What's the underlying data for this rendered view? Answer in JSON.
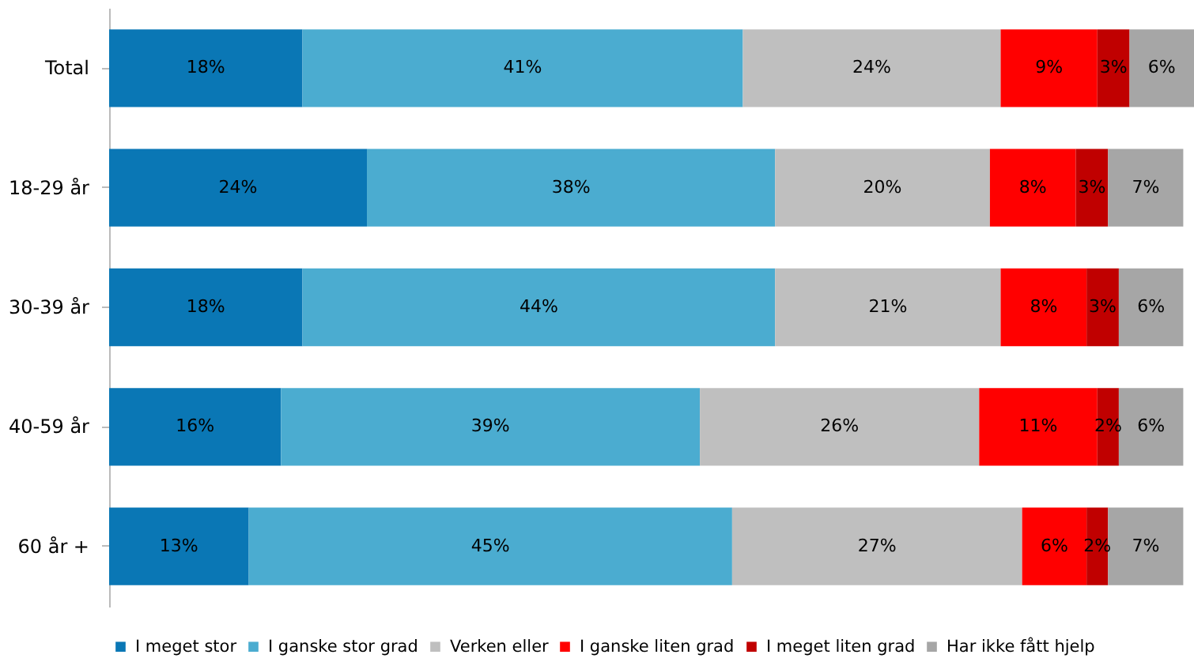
{
  "chart_data": {
    "type": "bar",
    "orientation": "horizontal",
    "stacked": true,
    "legend": "bottom",
    "categories": [
      "Total",
      "18-29 år",
      "30-39 år",
      "40-59 år",
      "60 år +"
    ],
    "series": [
      {
        "name": "I meget stor",
        "color": "#0a77b5",
        "values": [
          18,
          24,
          18,
          16,
          13
        ],
        "value_labels": [
          "18%",
          "24%",
          "18%",
          "16%",
          "13%"
        ]
      },
      {
        "name": "I ganske stor grad",
        "color": "#4bacd0",
        "values": [
          41,
          38,
          44,
          39,
          45
        ],
        "value_labels": [
          "41%",
          "38%",
          "44%",
          "39%",
          "45%"
        ]
      },
      {
        "name": "Verken eller",
        "color": "#bfbfbf",
        "values": [
          24,
          20,
          21,
          26,
          27
        ],
        "value_labels": [
          "24%",
          "20%",
          "21%",
          "26%",
          "27%"
        ]
      },
      {
        "name": "I ganske liten grad",
        "color": "#ff0000",
        "values": [
          9,
          8,
          8,
          11,
          6
        ],
        "value_labels": [
          "9%",
          "8%",
          "8%",
          "11%",
          "6%"
        ]
      },
      {
        "name": "I meget liten grad",
        "color": "#c00000",
        "values": [
          3,
          3,
          3,
          2,
          2
        ],
        "value_labels": [
          "3%",
          "3%",
          "3%",
          "2%",
          "2%"
        ]
      },
      {
        "name": "Har ikke fått hjelp",
        "color": "#a6a6a6",
        "values": [
          6,
          7,
          6,
          6,
          7
        ],
        "value_labels": [
          "6%",
          "7%",
          "6%",
          "6%",
          "7%"
        ]
      }
    ]
  }
}
